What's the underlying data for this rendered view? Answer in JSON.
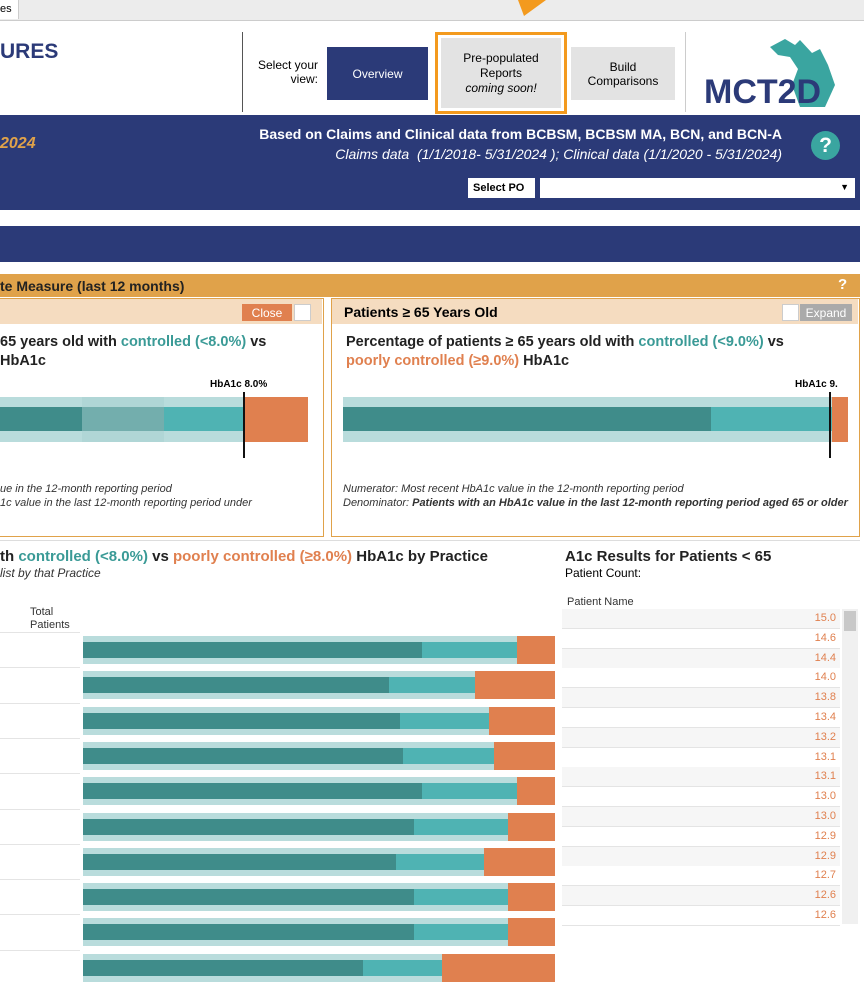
{
  "tab": "es",
  "header": {
    "title": "URES",
    "view_label": "Select your view:",
    "buttons": [
      "Overview",
      "Pre-populated Reports",
      "Build Comparisons"
    ],
    "coming_soon": "coming soon!",
    "logo": "MCT2D"
  },
  "banner": {
    "year": "2024",
    "source": "Based on Claims and Clinical data from BCBSM, BCBSM MA, BCN, and BCN-A",
    "dates": "Claims data  (1/1/2018- 5/31/2024 ); Clinical data (1/1/2020 - 5/31/2024)",
    "help": "?",
    "po_label": "Select PO"
  },
  "measure": {
    "title": "te Measure (last 12 months)",
    "help": "?"
  },
  "left_panel": {
    "button": "Close",
    "title_parts": [
      "65 years old with ",
      "controlled (<8.0%)",
      " vs"
    ],
    "title_line2": "HbA1c",
    "marker": "HbA1c 8.0%",
    "notes": [
      "ue in the 12-month reporting period",
      "1c value in the last 12-month reporting period under"
    ]
  },
  "right_panel": {
    "header": "Patients ≥ 65 Years Old",
    "button": "Expand",
    "title_parts": [
      "Percentage of patients ≥ 65 years old with ",
      "controlled (<9.0%)",
      " vs"
    ],
    "title_line2_parts": [
      "poorly controlled (≥9.0%)",
      " HbA1c"
    ],
    "marker": "HbA1c 9.",
    "numerator_label": "Numerator:",
    "numerator": " Most recent HbA1c value in the 12-month reporting period",
    "denominator_label": "Denominator:",
    "denominator": " Patients with an HbA1c value in the last 12-month reporting period aged 65 or older"
  },
  "practice": {
    "title_parts": [
      "th ",
      "controlled (<8.0%)",
      " vs ",
      "poorly controlled (≥8.0%)",
      " HbA1c by Practice"
    ],
    "subtitle": "list by that Practice",
    "column": "Total Patients",
    "poorly_controlled": [
      8,
      17,
      14,
      13,
      8,
      10,
      15,
      10,
      10,
      24
    ]
  },
  "results": {
    "title": "A1c Results for Patients < 65",
    "subtitle": "Patient Count:",
    "column": "Patient Name",
    "values": [
      "15.0",
      "14.6",
      "14.4",
      "14.0",
      "13.8",
      "13.4",
      "13.2",
      "13.1",
      "13.1",
      "13.0",
      "13.0",
      "12.9",
      "12.9",
      "12.7",
      "12.6",
      "12.6"
    ]
  }
}
